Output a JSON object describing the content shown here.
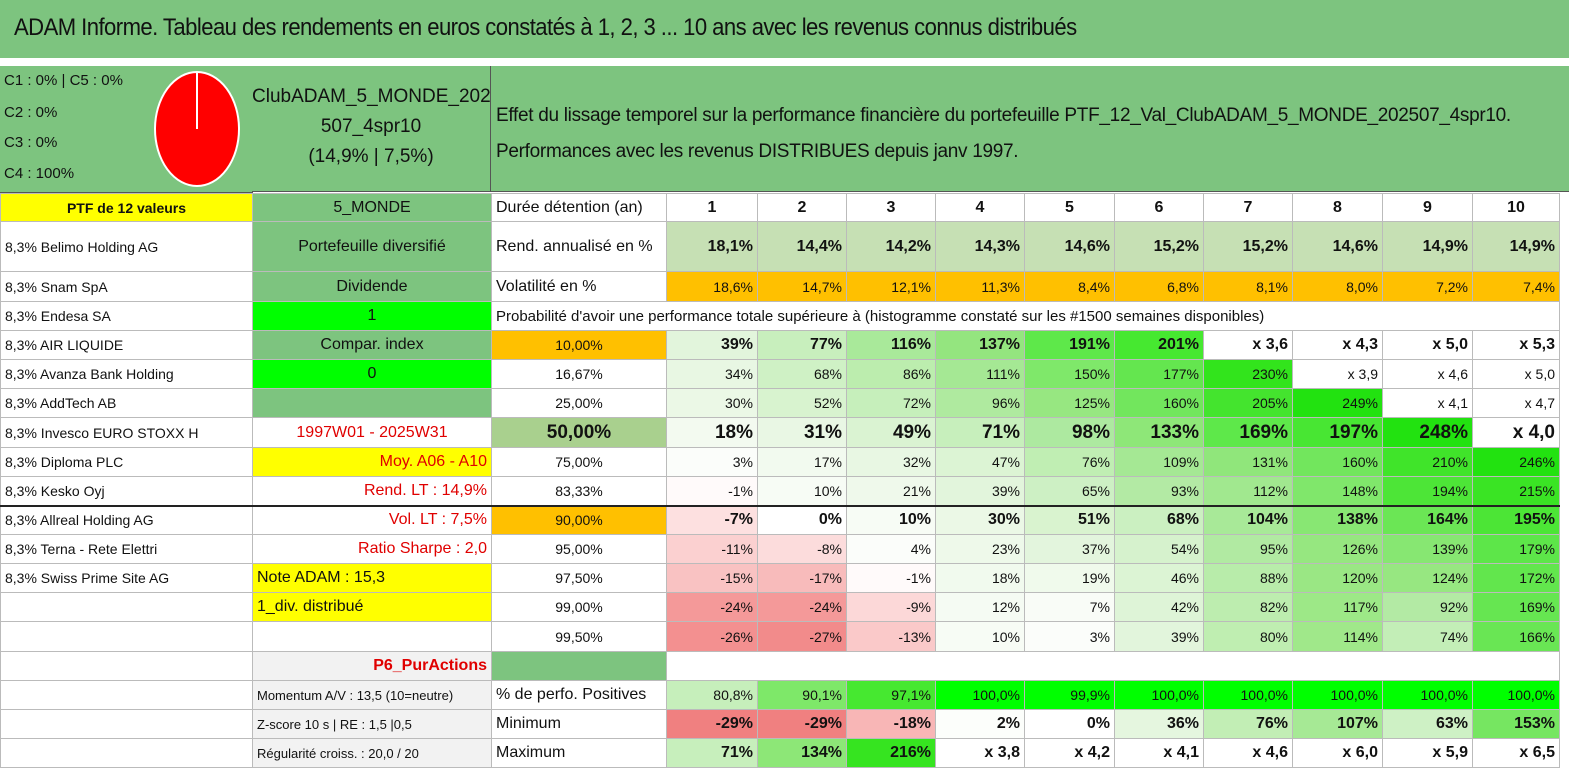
{
  "title": "ADAM Informe. Tableau des rendements en euros constatés à 1, 2, 3 ... 10 ans avec les revenus connus distribués",
  "categories": {
    "c1_c5": "C1 : 0% | C5 : 0%",
    "c2": "C2 : 0%",
    "c3": "C3 : 0%",
    "c4": "C4 : 100%"
  },
  "pie_chart": {
    "color": "#ff0000",
    "values": {
      "C1": 0,
      "C2": 0,
      "C3": 0,
      "C4": 100,
      "C5": 0
    }
  },
  "portfolio": {
    "name_line1": "ClubADAM_5_MONDE_202",
    "name_line2": "507_4spr10",
    "stats": "(14,9% | 7,5%)"
  },
  "description": {
    "line1": "Effet du lissage temporel sur la performance financière du portefeuille PTF_12_Val_ClubADAM_5_MONDE_202507_4spr10.",
    "line2": "Performances avec les revenus DISTRIBUES depuis janv 1997."
  },
  "probability_header": "Probabilité d'avoir une performance totale supérieure à (histogramme constaté sur les #1500 semaines disponibles)",
  "colors": {
    "header_green": "#7dc47f",
    "yellow": "#ffff00",
    "orange": "#ffc000",
    "bright_green": "#00ff00",
    "red_text": "#e00000"
  },
  "rows": [
    {
      "a": "PTF de 12 valeurs",
      "a_bg": "#ffff00",
      "a_bold": true,
      "a_align": "center",
      "b": "5_MONDE",
      "b_bg": "#7dc47f",
      "b_align": "center",
      "c": "Durée détention (an)",
      "c_align": "left",
      "cells": [
        "1",
        "2",
        "3",
        "4",
        "5",
        "6",
        "7",
        "8",
        "9",
        "10"
      ],
      "cells_bold": true,
      "cells_align": "center"
    },
    {
      "a": "8,3% Belimo Holding AG",
      "b": "Portefeuille diversifié",
      "b_bg": "#7dc47f",
      "b_align": "center",
      "c": "Rend. annualisé en %",
      "c_align": "left",
      "cells": [
        "18,1%",
        "14,4%",
        "14,2%",
        "14,3%",
        "14,6%",
        "15,2%",
        "15,2%",
        "14,6%",
        "14,9%",
        "14,9%"
      ],
      "cells_bg": [
        "#c6e0b4",
        "#c6e0b4",
        "#c6e0b4",
        "#c6e0b4",
        "#c6e0b4",
        "#c6e0b4",
        "#c6e0b4",
        "#c6e0b4",
        "#c6e0b4",
        "#c6e0b4"
      ],
      "cells_bold": true
    },
    {
      "a": "8,3% Snam SpA",
      "b": "Dividende",
      "b_bg": "#7dc47f",
      "b_align": "center",
      "c": "Volatilité en %",
      "c_align": "left",
      "cells": [
        "18,6%",
        "14,7%",
        "12,1%",
        "11,3%",
        "8,4%",
        "6,8%",
        "8,1%",
        "8,0%",
        "7,2%",
        "7,4%"
      ],
      "cells_bg": [
        "#ffc000",
        "#ffc000",
        "#ffc000",
        "#ffc000",
        "#ffc000",
        "#ffc000",
        "#ffc000",
        "#ffc000",
        "#ffc000",
        "#ffc000"
      ]
    },
    {
      "a": "8,3% Endesa SA",
      "b": "1",
      "b_bg": "#00ff00",
      "b_align": "center",
      "probability_row": true
    },
    {
      "a": "8,3% AIR LIQUIDE",
      "b": "Compar. index",
      "b_bg": "#7dc47f",
      "b_align": "center",
      "c": "10,00%",
      "c_bg": "#ffc000",
      "c_align": "center",
      "cells": [
        "39%",
        "77%",
        "116%",
        "137%",
        "191%",
        "201%",
        "x 3,6",
        "x 4,3",
        "x 5,0",
        "x 5,3"
      ],
      "cells_bg": [
        "#e2f5dc",
        "#c8efbd",
        "#a9e99a",
        "#94e57f",
        "#5ee84a",
        "#46e830",
        "#ffffff",
        "#ffffff",
        "#ffffff",
        "#ffffff"
      ],
      "cells_bold": true
    },
    {
      "a": "8,3% Avanza Bank Holding",
      "b": "0",
      "b_bg": "#00ff00",
      "b_align": "center",
      "c": "16,67%",
      "c_align": "center",
      "cells": [
        "34%",
        "68%",
        "86%",
        "111%",
        "150%",
        "177%",
        "230%",
        "x 3,9",
        "x 4,6",
        "x 5,0"
      ],
      "cells_bg": [
        "#e8f7e3",
        "#cff1c5",
        "#bcedae",
        "#a5e894",
        "#7fe86a",
        "#64e64f",
        "#32e41c",
        "#ffffff",
        "#ffffff",
        "#ffffff"
      ]
    },
    {
      "a": "8,3% AddTech AB",
      "b": "",
      "b_bg": "#7dc47f",
      "c": "25,00%",
      "c_align": "center",
      "cells": [
        "30%",
        "52%",
        "72%",
        "96%",
        "125%",
        "160%",
        "205%",
        "249%",
        "x 4,1",
        "x 4,7"
      ],
      "cells_bg": [
        "#ebf8e6",
        "#d8f3cf",
        "#c6efbb",
        "#afea9f",
        "#97e781",
        "#72e65d",
        "#44e42e",
        "#22e210",
        "#ffffff",
        "#ffffff"
      ]
    },
    {
      "a": "8,3% Invesco EURO STOXX H",
      "b": "1997W01 - 2025W31",
      "b_red": true,
      "b_align": "center",
      "c": "50,00%",
      "c_bg": "#a9d08e",
      "c_align": "center",
      "big": true,
      "cells": [
        "18%",
        "31%",
        "49%",
        "71%",
        "98%",
        "133%",
        "169%",
        "197%",
        "248%",
        "x 4,0"
      ],
      "cells_bg": [
        "#f3faf0",
        "#e9f7e4",
        "#daf3d2",
        "#c7efbc",
        "#ade9a0",
        "#8ee778",
        "#5ee84a",
        "#48e633",
        "#22e210",
        "#ffffff"
      ]
    },
    {
      "a": "8,3% Diploma PLC",
      "b": "Moy. A06 - A10",
      "b_bg": "#ffff00",
      "b_red": true,
      "b_align": "right",
      "c": "75,00%",
      "c_align": "center",
      "cells": [
        "3%",
        "17%",
        "32%",
        "47%",
        "76%",
        "109%",
        "131%",
        "160%",
        "210%",
        "246%"
      ],
      "cells_bg": [
        "#fbfdfa",
        "#f2faef",
        "#e8f7e3",
        "#dcf4d4",
        "#c0eeb3",
        "#a5e894",
        "#90e67b",
        "#72e65d",
        "#40e42a",
        "#22e210"
      ]
    },
    {
      "a": "8,3% Kesko Oyj",
      "b": "Rend. LT : 14,9%",
      "b_red": true,
      "b_align": "right",
      "c": "83,33%",
      "c_align": "center",
      "cells": [
        "-1%",
        "10%",
        "21%",
        "39%",
        "65%",
        "93%",
        "112%",
        "148%",
        "194%",
        "215%"
      ],
      "cells_bg": [
        "#fffafa",
        "#f7fcf5",
        "#eff9eb",
        "#e2f5dc",
        "#cdf0c4",
        "#b3eaa4",
        "#a1e88f",
        "#80e76b",
        "#4de537",
        "#3ae424"
      ]
    },
    {
      "a": "8,3% Allreal Holding AG",
      "b": "Vol. LT : 7,5%",
      "b_red": true,
      "b_align": "right",
      "c": "90,00%",
      "c_bg": "#ffc000",
      "c_align": "center",
      "strong": true,
      "cells": [
        "-7%",
        "0%",
        "10%",
        "30%",
        "51%",
        "68%",
        "104%",
        "138%",
        "164%",
        "195%"
      ],
      "cells_bg": [
        "#fde0e0",
        "#ffffff",
        "#f7fcf5",
        "#ebf8e6",
        "#d9f3cf",
        "#cbf0c1",
        "#a8e998",
        "#88e773",
        "#6be655",
        "#4ce536"
      ],
      "cells_bold": true
    },
    {
      "a": "8,3% Terna - Rete Elettri",
      "b": "Ratio Sharpe : 2,0",
      "b_red": true,
      "b_align": "right",
      "c": "95,00%",
      "c_align": "center",
      "cells": [
        "-11%",
        "-8%",
        "4%",
        "23%",
        "37%",
        "54%",
        "95%",
        "126%",
        "139%",
        "179%"
      ],
      "cells_bg": [
        "#fbd0d0",
        "#fcdcdc",
        "#fbfdfa",
        "#eef9ea",
        "#e3f5dd",
        "#d6f2cd",
        "#b1eaa2",
        "#96e780",
        "#87e772",
        "#5de649"
      ]
    },
    {
      "a": "8,3% Swiss Prime Site AG",
      "b": "Note ADAM : 15,3",
      "b_bg": "#ffff00",
      "b_align": "left",
      "c": "97,50%",
      "c_align": "center",
      "cells": [
        "-15%",
        "-17%",
        "-1%",
        "18%",
        "19%",
        "46%",
        "88%",
        "120%",
        "124%",
        "172%"
      ],
      "cells_bg": [
        "#f9c2c2",
        "#f8bbbb",
        "#fffafa",
        "#f1faee",
        "#f0faec",
        "#dcf4d4",
        "#b8ecaa",
        "#9ae784",
        "#97e781",
        "#62e64d"
      ]
    },
    {
      "a": "",
      "b": "1_div. distribué",
      "b_bg": "#ffff00",
      "b_align": "left",
      "c": "99,00%",
      "c_align": "center",
      "cells": [
        "-24%",
        "-24%",
        "-9%",
        "12%",
        "7%",
        "42%",
        "82%",
        "117%",
        "92%",
        "169%"
      ],
      "cells_bg": [
        "#f49999",
        "#f49999",
        "#fcd8d8",
        "#f5fbf3",
        "#f9fcf7",
        "#def4d7",
        "#bdedaf",
        "#9de887",
        "#b3eaa4",
        "#66e651"
      ]
    },
    {
      "a": "",
      "b": "",
      "c": "99,50%",
      "c_align": "center",
      "cells": [
        "-26%",
        "-27%",
        "-13%",
        "10%",
        "3%",
        "39%",
        "80%",
        "114%",
        "74%",
        "166%"
      ],
      "cells_bg": [
        "#f39090",
        "#f28b8b",
        "#fac9c9",
        "#f7fcf5",
        "#fbfdfa",
        "#e2f5dc",
        "#bfeeb1",
        "#a0e88a",
        "#c3eeb7",
        "#69e654"
      ]
    },
    {
      "a": "",
      "b": "P6_PurActions",
      "b_bg": "#f2f2f2",
      "b_red": true,
      "b_align": "right",
      "b_bold": true,
      "c": "",
      "c_bg": "#7dc47f",
      "empty_row": true
    },
    {
      "a": "",
      "b": "Momentum A/V : 13,5 (10=neutre)",
      "b_bg": "#f2f2f2",
      "b_align": "left",
      "b_small": true,
      "c": "% de perfo. Positives",
      "c_align": "left",
      "cells": [
        "80,8%",
        "90,1%",
        "97,1%",
        "100,0%",
        "99,9%",
        "100,0%",
        "100,0%",
        "100,0%",
        "100,0%",
        "100,0%"
      ],
      "cells_bg": [
        "#c6efbb",
        "#7ee869",
        "#46e830",
        "#00ff00",
        "#00ff00",
        "#00ff00",
        "#00ff00",
        "#00ff00",
        "#00ff00",
        "#00ff00"
      ]
    },
    {
      "a": "",
      "b": "Z-score 10 s | RE : 1,5 |0,5",
      "b_bg": "#f2f2f2",
      "b_align": "left",
      "b_small": true,
      "c": "Minimum",
      "c_align": "left",
      "cells": [
        "-29%",
        "-29%",
        "-18%",
        "2%",
        "0%",
        "36%",
        "76%",
        "107%",
        "63%",
        "153%"
      ],
      "cells_bg": [
        "#f08080",
        "#f08080",
        "#f8b6b6",
        "#fcfefb",
        "#ffffff",
        "#e5f6df",
        "#c2eeb5",
        "#a6e995",
        "#cef1c5",
        "#76e661"
      ],
      "cells_bold": true
    },
    {
      "a": "",
      "b": "Régularité croiss. : 20,0 / 20",
      "b_bg": "#f2f2f2",
      "b_align": "left",
      "b_small": true,
      "c": "Maximum",
      "c_align": "left",
      "cells": [
        "71%",
        "134%",
        "216%",
        "x 3,8",
        "x 4,2",
        "x 4,1",
        "x 4,6",
        "x 6,0",
        "x 5,9",
        "x 6,5"
      ],
      "cells_bg": [
        "#c7efbc",
        "#8de777",
        "#36e420",
        "#ffffff",
        "#ffffff",
        "#ffffff",
        "#ffffff",
        "#ffffff",
        "#ffffff",
        "#ffffff"
      ],
      "cells_bold": true
    }
  ]
}
